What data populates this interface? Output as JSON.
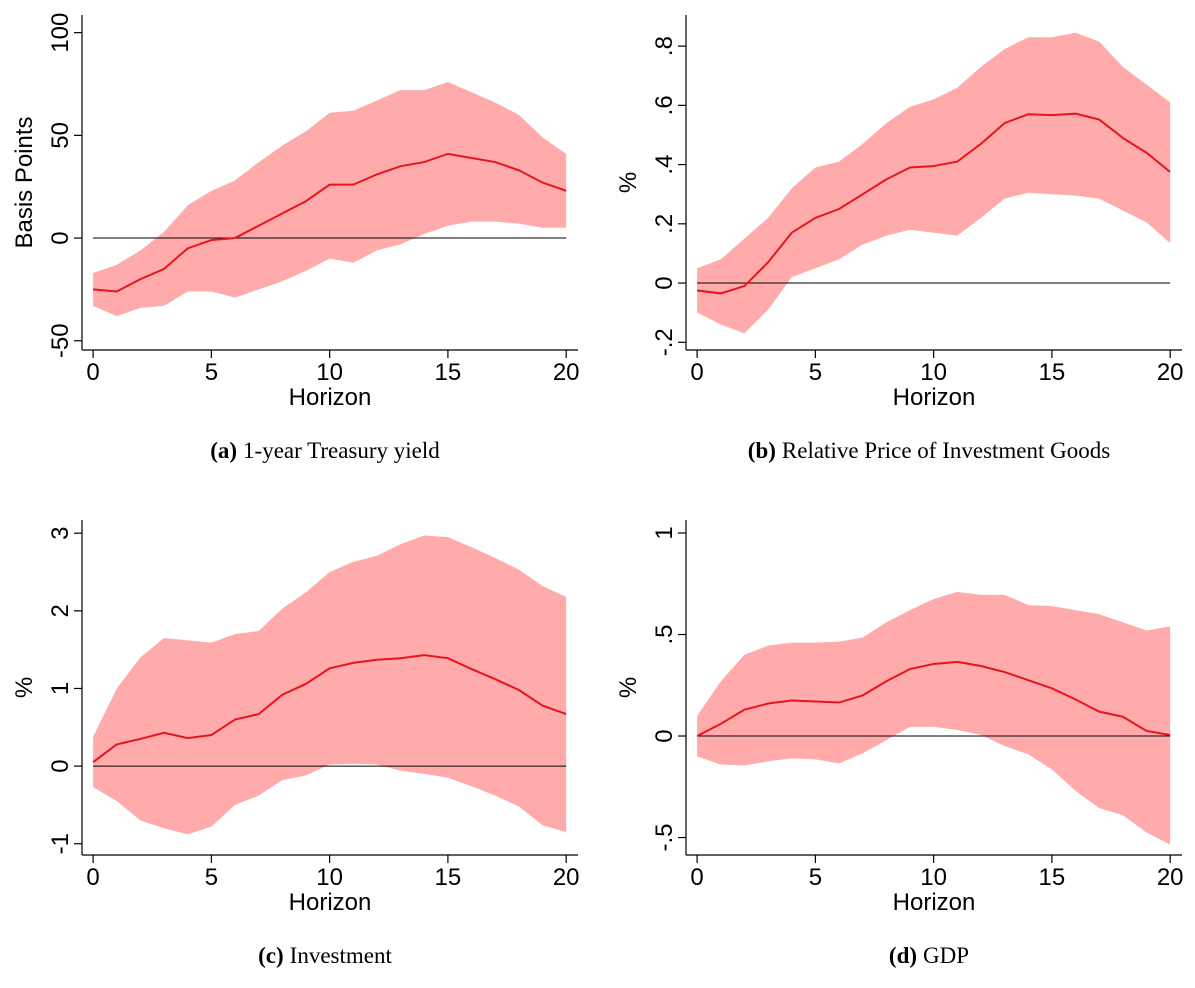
{
  "chart_data": [
    {
      "type": "band-line",
      "ylabel": "Basis Points",
      "xlabel": "Horizon",
      "caption_label": "(a)",
      "caption": "1-year Treasury yield",
      "x": [
        0,
        1,
        2,
        3,
        4,
        5,
        6,
        7,
        8,
        9,
        10,
        11,
        12,
        13,
        14,
        15,
        16,
        17,
        18,
        19,
        20
      ],
      "values": [
        -25,
        -26,
        -20,
        -15,
        -5,
        -1,
        0,
        6,
        12,
        18,
        26,
        26,
        31,
        35,
        37,
        41,
        39,
        37,
        33,
        27,
        23
      ],
      "upper": [
        -17,
        -13,
        -6,
        3,
        16,
        23,
        28,
        37,
        45,
        52,
        61,
        62,
        67,
        72,
        72,
        76,
        71,
        66,
        60,
        49,
        41
      ],
      "lower": [
        -33,
        -38,
        -34,
        -33,
        -26,
        -26,
        -29,
        -25,
        -21,
        -16,
        -10,
        -12,
        -6,
        -3,
        2,
        6,
        8,
        8,
        7,
        5,
        5
      ],
      "color": "#e8141b",
      "band_color": "#ffabab",
      "refline": 0,
      "xlim": [
        -0.47,
        20.5
      ],
      "xticks": [
        0,
        5,
        10,
        15,
        20
      ],
      "ylim": [
        -54.5,
        108.6
      ],
      "yticks": [
        -50,
        0,
        50,
        100
      ]
    },
    {
      "type": "band-line",
      "ylabel": "%",
      "xlabel": "Horizon",
      "caption_label": "(b)",
      "caption": "Relative Price of Investment Goods",
      "x": [
        0,
        1,
        2,
        3,
        4,
        5,
        6,
        7,
        8,
        9,
        10,
        11,
        12,
        13,
        14,
        15,
        16,
        17,
        18,
        19,
        20
      ],
      "values": [
        -0.025,
        -0.035,
        -0.01,
        0.07,
        0.17,
        0.22,
        0.25,
        0.3,
        0.35,
        0.39,
        0.395,
        0.41,
        0.47,
        0.54,
        0.57,
        0.567,
        0.572,
        0.552,
        0.49,
        0.44,
        0.375
      ],
      "upper": [
        0.05,
        0.08,
        0.15,
        0.22,
        0.32,
        0.39,
        0.41,
        0.47,
        0.54,
        0.595,
        0.62,
        0.66,
        0.73,
        0.79,
        0.83,
        0.83,
        0.845,
        0.815,
        0.73,
        0.67,
        0.61
      ],
      "lower": [
        -0.1,
        -0.14,
        -0.17,
        -0.09,
        0.02,
        0.05,
        0.08,
        0.13,
        0.16,
        0.18,
        0.17,
        0.16,
        0.22,
        0.285,
        0.305,
        0.3,
        0.295,
        0.285,
        0.245,
        0.205,
        0.135
      ],
      "color": "#e8141b",
      "band_color": "#ffabab",
      "refline": 0,
      "xlim": [
        -0.47,
        20.5
      ],
      "xticks": [
        0,
        5,
        10,
        15,
        20
      ],
      "ylim": [
        -0.226,
        0.905
      ],
      "yticks": [
        {
          "value": -0.2,
          "label": "-.2"
        },
        0,
        {
          "value": 0.2,
          "label": ".2"
        },
        {
          "value": 0.4,
          "label": ".4"
        },
        {
          "value": 0.6,
          "label": ".6"
        },
        {
          "value": 0.8,
          "label": ".8"
        }
      ]
    },
    {
      "type": "band-line",
      "ylabel": "%",
      "xlabel": "Horizon",
      "caption_label": "(c)",
      "caption": "Investment",
      "x": [
        0,
        1,
        2,
        3,
        4,
        5,
        6,
        7,
        8,
        9,
        10,
        11,
        12,
        13,
        14,
        15,
        16,
        17,
        18,
        19,
        20
      ],
      "values": [
        0.05,
        0.28,
        0.35,
        0.43,
        0.36,
        0.4,
        0.6,
        0.67,
        0.92,
        1.06,
        1.26,
        1.33,
        1.37,
        1.39,
        1.43,
        1.39,
        1.25,
        1.12,
        0.98,
        0.78,
        0.67
      ],
      "upper": [
        0.38,
        1.0,
        1.4,
        1.65,
        1.62,
        1.59,
        1.7,
        1.74,
        2.03,
        2.24,
        2.5,
        2.63,
        2.71,
        2.86,
        2.97,
        2.95,
        2.82,
        2.68,
        2.53,
        2.32,
        2.18
      ],
      "lower": [
        -0.27,
        -0.45,
        -0.7,
        -0.8,
        -0.88,
        -0.78,
        -0.5,
        -0.38,
        -0.18,
        -0.12,
        0.02,
        0.03,
        0.02,
        -0.06,
        -0.1,
        -0.15,
        -0.26,
        -0.38,
        -0.52,
        -0.76,
        -0.85
      ],
      "color": "#e8141b",
      "band_color": "#ffabab",
      "refline": 0,
      "xlim": [
        -0.47,
        20.5
      ],
      "xticks": [
        0,
        5,
        10,
        15,
        20
      ],
      "ylim": [
        -1.145,
        3.17
      ],
      "yticks": [
        -1,
        0,
        1,
        2,
        3
      ]
    },
    {
      "type": "band-line",
      "ylabel": "%",
      "xlabel": "Horizon",
      "caption_label": "(d)",
      "caption": "GDP",
      "x": [
        0,
        1,
        2,
        3,
        4,
        5,
        6,
        7,
        8,
        9,
        10,
        11,
        12,
        13,
        14,
        15,
        16,
        17,
        18,
        19,
        20
      ],
      "values": [
        0,
        0.06,
        0.13,
        0.16,
        0.175,
        0.17,
        0.165,
        0.2,
        0.27,
        0.33,
        0.355,
        0.365,
        0.345,
        0.315,
        0.275,
        0.235,
        0.18,
        0.12,
        0.095,
        0.025,
        0.005
      ],
      "upper": [
        0.1,
        0.27,
        0.4,
        0.445,
        0.46,
        0.46,
        0.465,
        0.485,
        0.56,
        0.62,
        0.675,
        0.71,
        0.695,
        0.695,
        0.645,
        0.64,
        0.62,
        0.6,
        0.56,
        0.52,
        0.54
      ],
      "lower": [
        -0.1,
        -0.14,
        -0.145,
        -0.125,
        -0.11,
        -0.115,
        -0.135,
        -0.085,
        -0.02,
        0.045,
        0.045,
        0.03,
        0.005,
        -0.05,
        -0.09,
        -0.165,
        -0.27,
        -0.355,
        -0.39,
        -0.475,
        -0.535
      ],
      "color": "#e8141b",
      "band_color": "#ffabab",
      "refline": 0,
      "xlim": [
        -0.47,
        20.5
      ],
      "xticks": [
        0,
        5,
        10,
        15,
        20
      ],
      "ylim": [
        -0.586,
        1.064
      ],
      "yticks": [
        {
          "value": -0.5,
          "label": "-.5"
        },
        0,
        {
          "value": 0.5,
          "label": ".5"
        },
        1
      ]
    }
  ]
}
